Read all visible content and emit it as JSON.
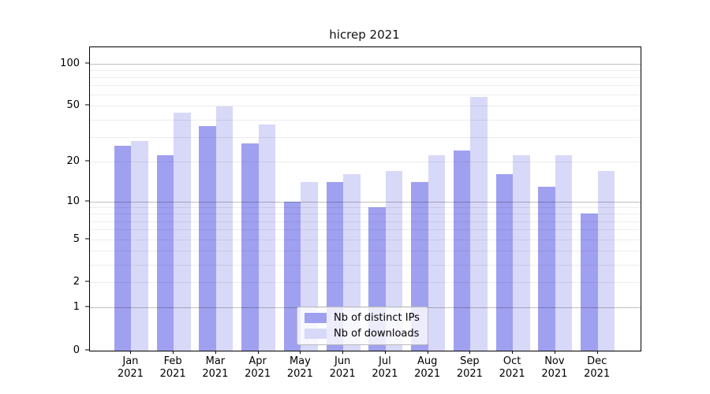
{
  "title": "hicrep 2021",
  "colors": {
    "ips_bar": "#a0a0f0",
    "downloads_bar": "#d8d8f8",
    "spine": "#000000",
    "minor_grid": "#ededed",
    "major_grid": "#c0c0c0",
    "legend_border": "#bbbbbb"
  },
  "chart_data": {
    "type": "bar",
    "title": "hicrep 2021",
    "categories": [
      "Jan",
      "Feb",
      "Mar",
      "Apr",
      "May",
      "Jun",
      "Jul",
      "Aug",
      "Sep",
      "Oct",
      "Nov",
      "Dec"
    ],
    "category_year": "2021",
    "series": [
      {
        "name": "Nb of distinct IPs",
        "color": "#a0a0f0",
        "values": [
          26,
          22,
          36,
          27,
          10,
          14,
          9,
          14,
          24,
          16,
          13,
          8
        ]
      },
      {
        "name": "Nb of downloads",
        "color": "#d8d8f8",
        "values": [
          28,
          45,
          50,
          37,
          14,
          16,
          17,
          22,
          58,
          22,
          22,
          17
        ]
      }
    ],
    "xlabel": "",
    "ylabel": "",
    "yscale": "log1p",
    "ylim": [
      0,
      130
    ],
    "yticks": [
      0,
      1,
      2,
      5,
      10,
      20,
      50,
      100
    ],
    "ytick_labels": [
      "0",
      "1",
      "2",
      "5",
      "10",
      "20",
      "50",
      "100"
    ],
    "minor_gridlines": [
      2,
      3,
      4,
      5,
      6,
      7,
      8,
      9,
      20,
      30,
      40,
      50,
      60,
      70,
      80,
      90
    ],
    "major_gridlines": [
      1,
      10,
      100
    ],
    "grid": true,
    "legend_position": "lower center"
  }
}
